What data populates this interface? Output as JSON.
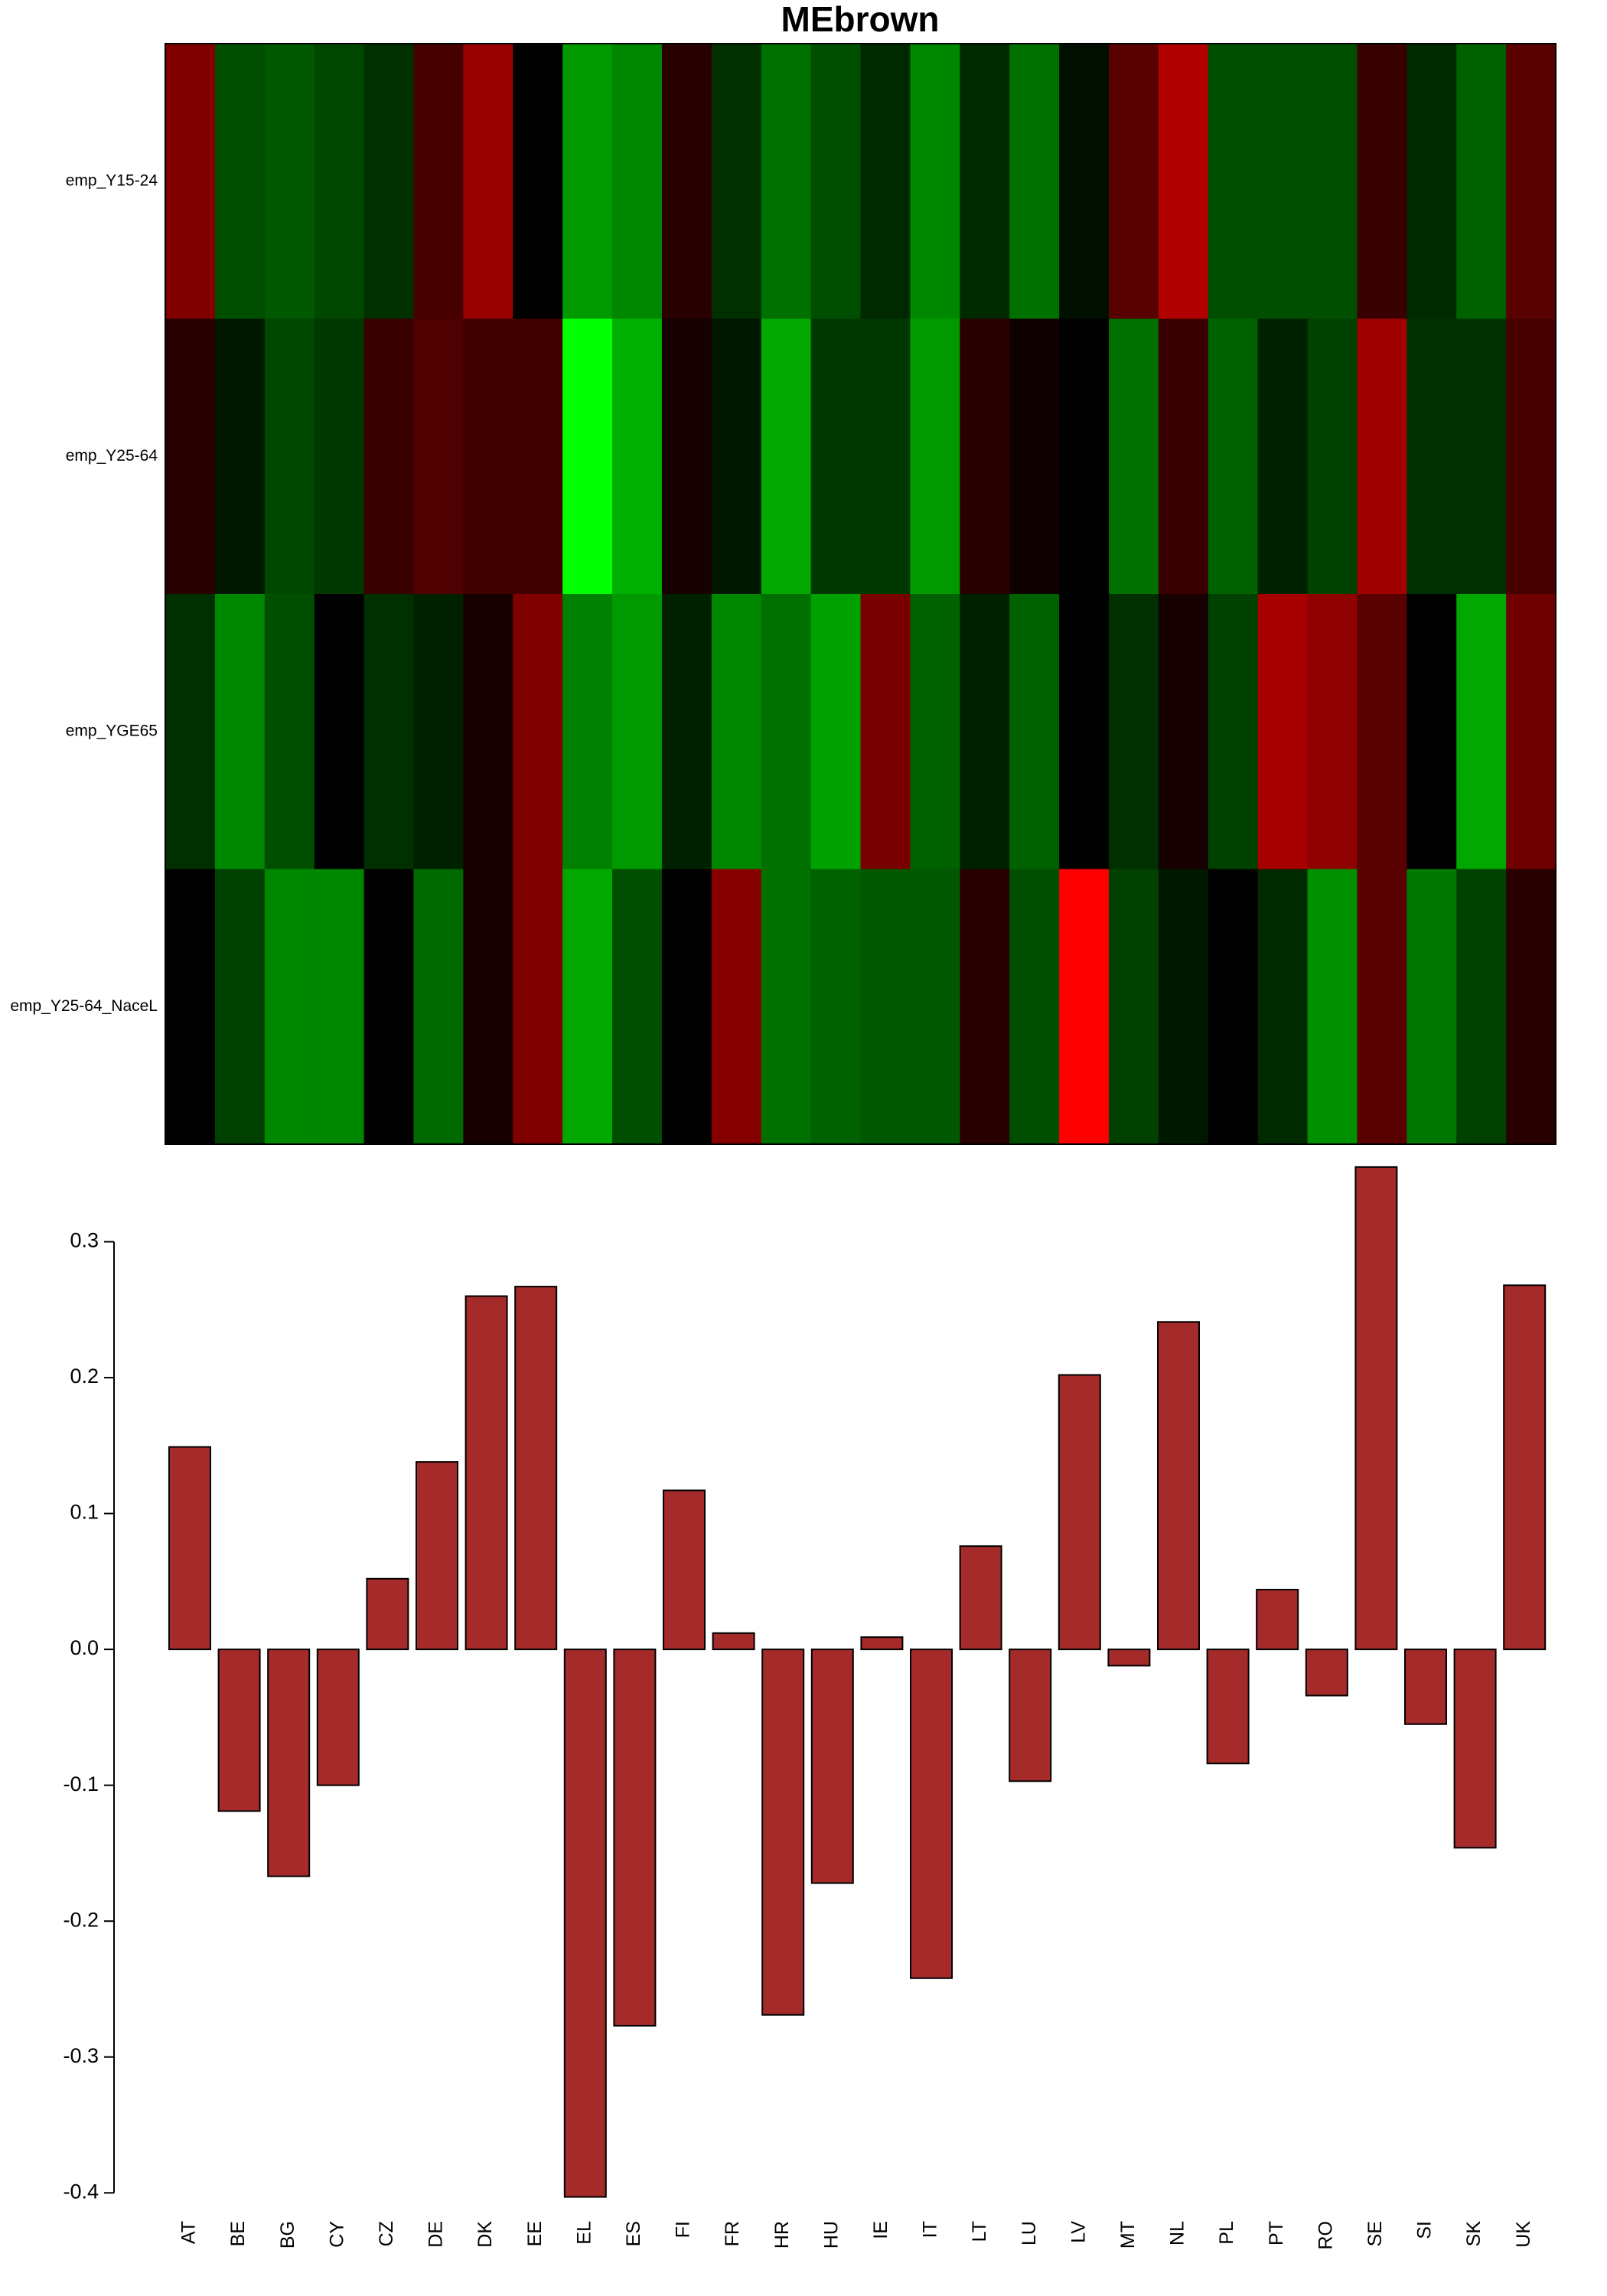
{
  "chart_data": [
    {
      "type": "heatmap",
      "title": "MEbrown",
      "rows": [
        "emp_Y15-24",
        "emp_Y25-64",
        "emp_YGE65",
        "emp_Y25-64_NaceL"
      ],
      "zlim": [
        -1,
        1
      ],
      "low_color": "#00ff00",
      "mid_color": "#000000",
      "high_color": "#ff0000",
      "values": [
        [
          0.5,
          -0.31,
          -0.35,
          -0.28,
          -0.19,
          0.28,
          0.6,
          0,
          -0.6,
          -0.53,
          0.16,
          -0.19,
          -0.44,
          -0.31,
          -0.16,
          -0.53,
          -0.16,
          -0.44,
          -0.06,
          0.35,
          0.69,
          -0.31,
          -0.31,
          -0.31,
          0.22,
          -0.16,
          -0.38,
          0.35
        ],
        [
          0.16,
          -0.09,
          -0.28,
          -0.22,
          0.22,
          0.31,
          0.25,
          0.25,
          -1,
          -0.69,
          0.09,
          -0.09,
          -0.66,
          -0.22,
          -0.22,
          -0.6,
          0.16,
          0.06,
          0,
          -0.44,
          0.22,
          -0.38,
          -0.13,
          -0.25,
          0.63,
          -0.19,
          -0.19,
          0.28
        ],
        [
          -0.19,
          -0.53,
          -0.31,
          0,
          -0.19,
          -0.13,
          0.09,
          0.5,
          -0.5,
          -0.6,
          -0.13,
          -0.53,
          -0.44,
          -0.63,
          0.47,
          -0.38,
          -0.13,
          -0.38,
          0,
          -0.19,
          0.09,
          -0.25,
          0.66,
          0.56,
          0.35,
          0,
          -0.66,
          0.44
        ],
        [
          0,
          -0.25,
          -0.53,
          -0.53,
          0,
          -0.41,
          0.09,
          0.5,
          -0.66,
          -0.31,
          0,
          0.53,
          -0.44,
          -0.38,
          -0.35,
          -0.35,
          0.16,
          -0.31,
          1,
          -0.25,
          -0.09,
          0,
          -0.16,
          -0.56,
          0.35,
          -0.47,
          -0.25,
          0.16
        ]
      ]
    },
    {
      "type": "bar",
      "color": "#a52a2a",
      "categories": [
        "AT",
        "BE",
        "BG",
        "CY",
        "CZ",
        "DE",
        "DK",
        "EE",
        "EL",
        "ES",
        "FI",
        "FR",
        "HR",
        "HU",
        "IE",
        "IT",
        "LT",
        "LU",
        "LV",
        "MT",
        "NL",
        "PL",
        "PT",
        "RO",
        "SE",
        "SI",
        "SK",
        "UK"
      ],
      "values": [
        0.149,
        -0.119,
        -0.167,
        -0.1,
        0.052,
        0.138,
        0.26,
        0.267,
        -0.403,
        -0.277,
        0.117,
        0.012,
        -0.269,
        -0.172,
        0.009,
        -0.242,
        0.076,
        -0.097,
        0.202,
        -0.012,
        0.241,
        -0.084,
        0.044,
        -0.034,
        0.355,
        -0.055,
        -0.146,
        0.268
      ],
      "ylim": [
        -0.41,
        0.36
      ],
      "yticks": [
        -0.4,
        -0.3,
        -0.2,
        -0.1,
        {
          "value": 0,
          "label": "0.0"
        },
        0.1,
        0.2,
        0.3
      ]
    }
  ]
}
